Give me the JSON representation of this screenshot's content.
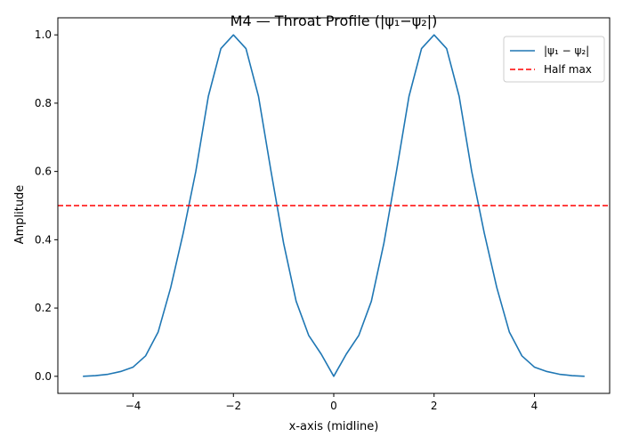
{
  "chart_data": {
    "type": "line",
    "title": "M4 — Throat Profile (|ψ₁−ψ₂|)",
    "xlabel": "x-axis (midline)",
    "ylabel": "Amplitude",
    "xlim": [
      -5.5,
      5.5
    ],
    "ylim": [
      -0.05,
      1.05
    ],
    "xticks": [
      -4,
      -2,
      0,
      2,
      4
    ],
    "xtick_labels": [
      "−4",
      "−2",
      "0",
      "2",
      "4"
    ],
    "yticks": [
      0.0,
      0.2,
      0.4,
      0.6,
      0.8,
      1.0
    ],
    "ytick_labels": [
      "0.0",
      "0.2",
      "0.4",
      "0.6",
      "0.8",
      "1.0"
    ],
    "grid": false,
    "legend_position": "top-right",
    "series": [
      {
        "name": "|ψ₁ − ψ₂|",
        "color": "#1f77b4",
        "style": "solid",
        "x": [
          -5.0,
          -4.75,
          -4.5,
          -4.25,
          -4.0,
          -3.75,
          -3.5,
          -3.25,
          -3.0,
          -2.75,
          -2.5,
          -2.25,
          -2.0,
          -1.75,
          -1.5,
          -1.25,
          -1.0,
          -0.75,
          -0.5,
          -0.25,
          0.0,
          0.25,
          0.5,
          0.75,
          1.0,
          1.25,
          1.5,
          1.75,
          2.0,
          2.25,
          2.5,
          2.75,
          3.0,
          3.25,
          3.5,
          3.75,
          4.0,
          4.25,
          4.5,
          4.75,
          5.0
        ],
        "y": [
          0.0,
          0.002,
          0.006,
          0.014,
          0.027,
          0.06,
          0.13,
          0.26,
          0.42,
          0.6,
          0.82,
          0.96,
          1.0,
          0.96,
          0.82,
          0.6,
          0.39,
          0.22,
          0.12,
          0.065,
          0.0,
          0.065,
          0.12,
          0.22,
          0.39,
          0.6,
          0.82,
          0.96,
          1.0,
          0.96,
          0.82,
          0.6,
          0.42,
          0.26,
          0.13,
          0.06,
          0.027,
          0.014,
          0.006,
          0.002,
          0.0
        ]
      },
      {
        "name": "Half max",
        "color": "#ff0000",
        "style": "dashed",
        "hline": 0.5
      }
    ]
  }
}
